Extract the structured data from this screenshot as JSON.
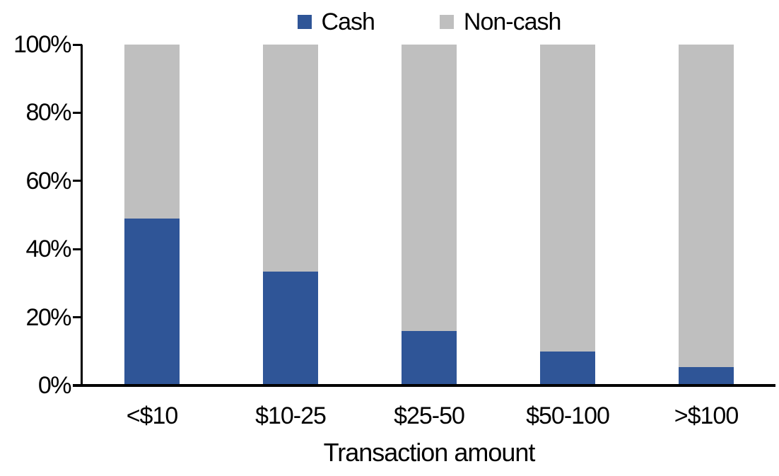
{
  "chart_data": {
    "type": "bar",
    "stacked": true,
    "title": "",
    "xlabel": "Transaction amount",
    "ylabel": "",
    "categories": [
      "<$10",
      "$10-25",
      "$25-50",
      "$50-100",
      ">$100"
    ],
    "series": [
      {
        "name": "Cash",
        "color": "#2F5597",
        "values": [
          49,
          33.5,
          16,
          10,
          5.5
        ]
      },
      {
        "name": "Non-cash",
        "color": "#BFBFBF",
        "values": [
          51,
          66.5,
          84,
          90,
          94.5
        ]
      }
    ],
    "ylim": [
      0,
      100
    ],
    "ytick_labels": [
      "0%",
      "20%",
      "40%",
      "60%",
      "80%",
      "100%"
    ],
    "grid": false,
    "legend_position": "top-center",
    "axis_color": "#000000",
    "background_color": "#FFFFFF"
  }
}
